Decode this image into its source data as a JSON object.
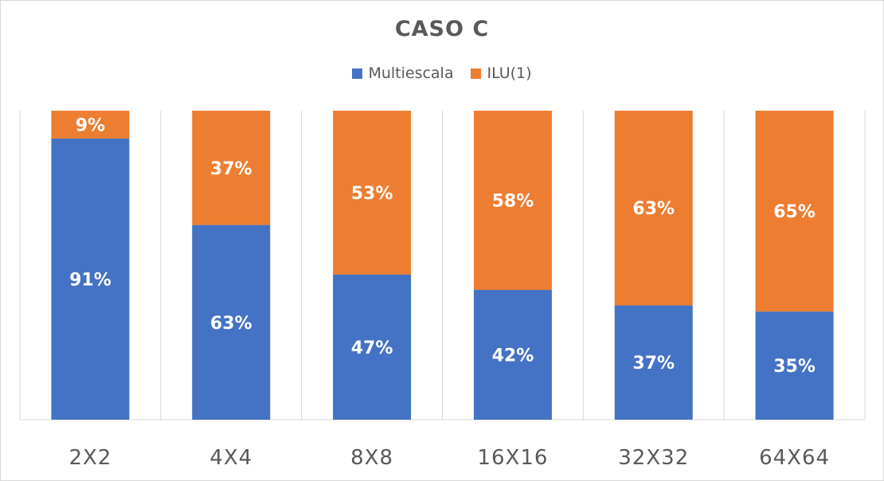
{
  "chart_data": {
    "type": "bar",
    "stacked": true,
    "percent_stacked": true,
    "title": "CASO  C",
    "categories": [
      "2X2",
      "4X4",
      "8X8",
      "16X16",
      "32X32",
      "64X64"
    ],
    "series": [
      {
        "name": "Multiescala",
        "values": [
          91,
          63,
          47,
          42,
          37,
          35
        ],
        "labels": [
          "91%",
          "63%",
          "47%",
          "42%",
          "37%",
          "35%"
        ],
        "color": "#4472c4"
      },
      {
        "name": "ILU(1)",
        "values": [
          9,
          37,
          53,
          58,
          63,
          65
        ],
        "labels": [
          "9%",
          "37%",
          "53%",
          "58%",
          "63%",
          "65%"
        ],
        "color": "#ed7d31"
      }
    ],
    "ylim": [
      0,
      100
    ],
    "grid": "vertical-separators",
    "legend_position": "top"
  }
}
